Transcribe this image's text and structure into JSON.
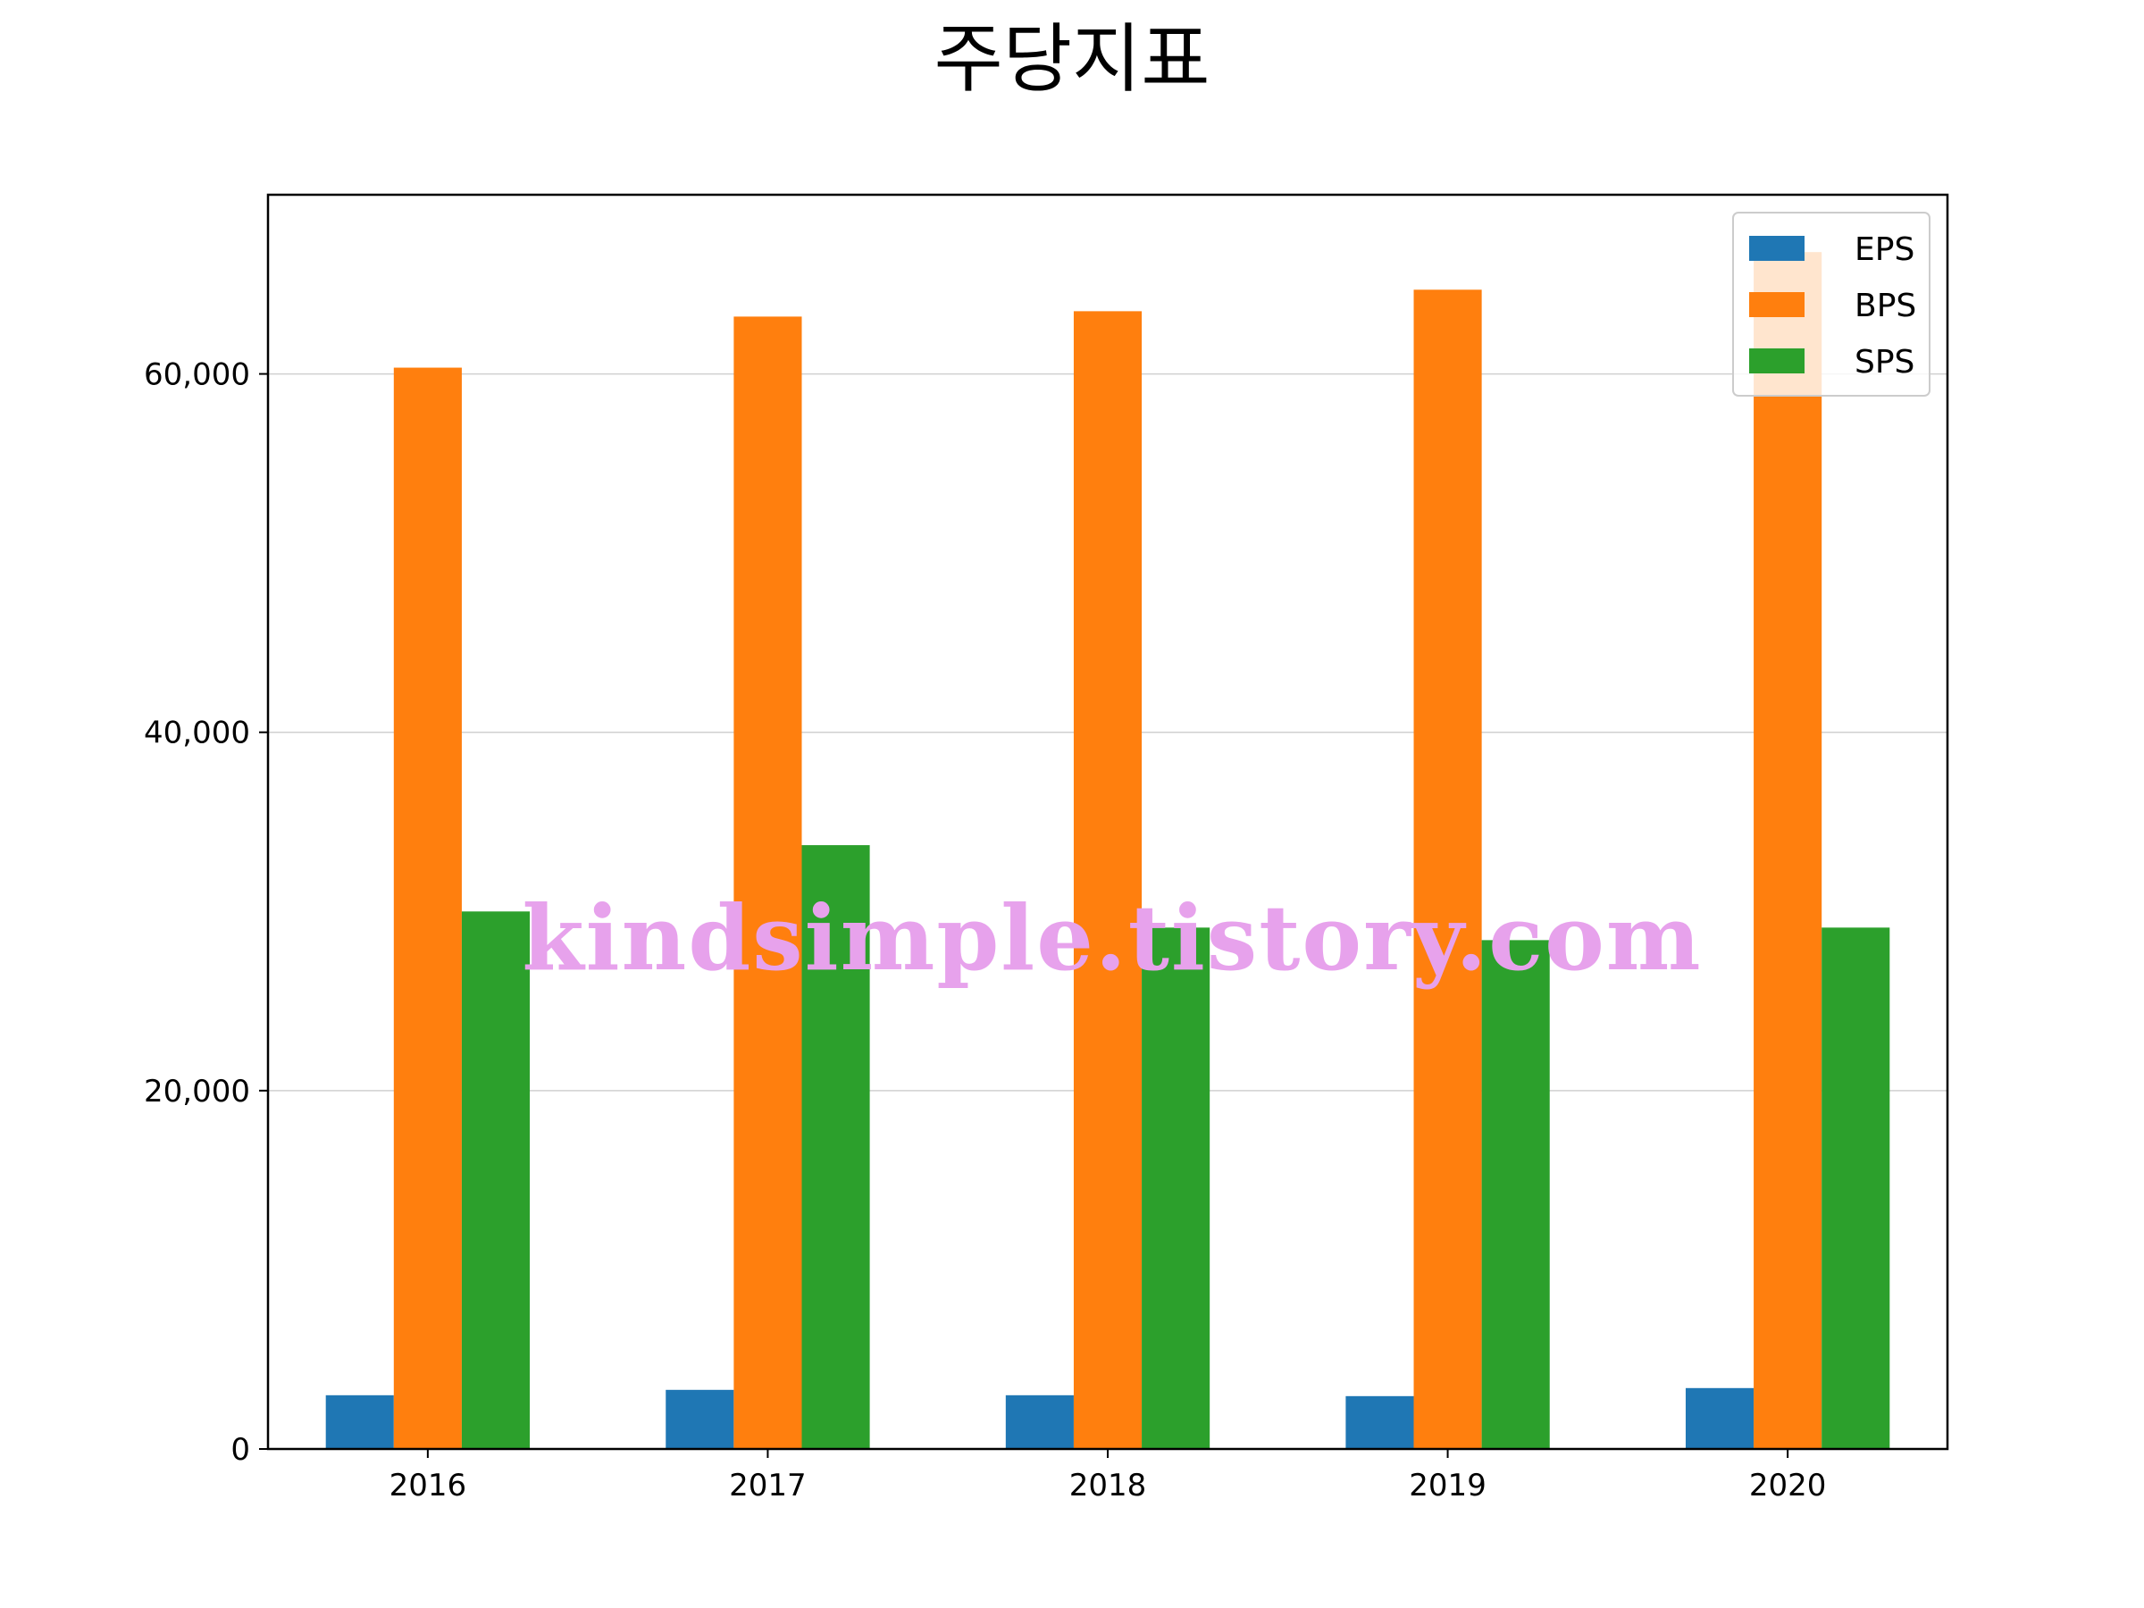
{
  "chart_data": {
    "type": "bar",
    "title": "주당지표",
    "xlabel": "",
    "ylabel": "",
    "categories": [
      "2016",
      "2017",
      "2018",
      "2019",
      "2020"
    ],
    "series": [
      {
        "name": "EPS",
        "color": "#1f77b4",
        "values": [
          3000,
          3300,
          3000,
          2950,
          3400
        ]
      },
      {
        "name": "BPS",
        "color": "#ff7f0e",
        "values": [
          60350,
          63200,
          63500,
          64700,
          66800
        ]
      },
      {
        "name": "SPS",
        "color": "#2ca02c",
        "values": [
          30000,
          33700,
          29100,
          28400,
          29100
        ]
      }
    ],
    "ylim": [
      0,
      70000
    ],
    "yticks": [
      0,
      20000,
      40000,
      60000
    ],
    "ytick_labels": [
      "0",
      "20,000",
      "40,000",
      "60,000"
    ],
    "grid": "horizontal",
    "legend_position": "top-right"
  },
  "watermark": "kindsimple.tistory.com"
}
